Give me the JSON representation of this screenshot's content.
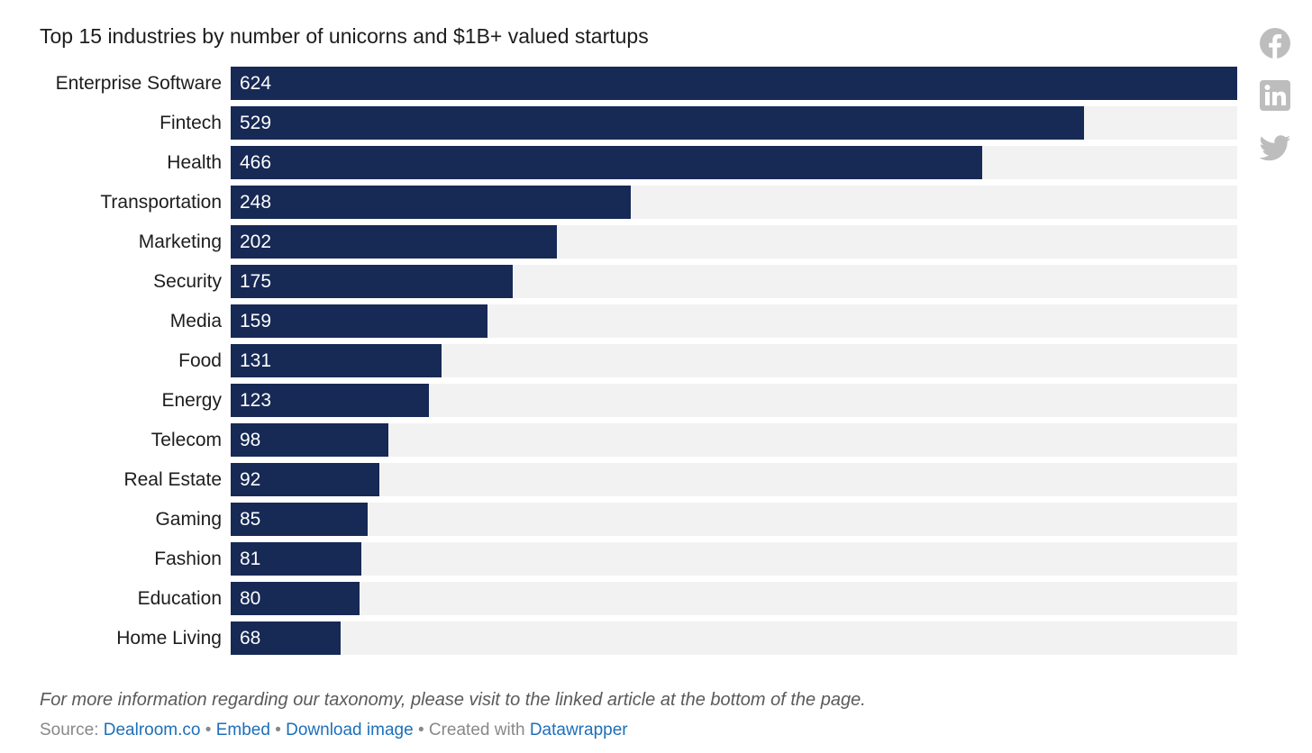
{
  "chart_data": {
    "type": "bar",
    "orientation": "horizontal",
    "title": "Top 15 industries by number of unicorns and $1B+ valued startups",
    "categories": [
      "Enterprise Software",
      "Fintech",
      "Health",
      "Transportation",
      "Marketing",
      "Security",
      "Media",
      "Food",
      "Energy",
      "Telecom",
      "Real Estate",
      "Gaming",
      "Fashion",
      "Education",
      "Home Living"
    ],
    "values": [
      624,
      529,
      466,
      248,
      202,
      175,
      159,
      131,
      123,
      98,
      92,
      85,
      81,
      80,
      68
    ],
    "xlim": [
      0,
      624
    ],
    "grid": false,
    "data_labels": "inside-bar",
    "colors": {
      "bar": "#172955",
      "track": "#f2f2f2",
      "label_text": "#ffffff"
    }
  },
  "note": "For more information regarding our taxonomy, please visit to the linked article at the bottom of the page.",
  "footer": {
    "source_prefix": "Source:",
    "source_link": "Dealroom.co",
    "separator": "•",
    "embed_link": "Embed",
    "download_link": "Download image",
    "created_with": "Created with",
    "datawrapper_link": "Datawrapper"
  },
  "social": {
    "icons": [
      "facebook-icon",
      "linkedin-icon",
      "twitter-icon"
    ],
    "icon_color": "#bdbdbd"
  }
}
